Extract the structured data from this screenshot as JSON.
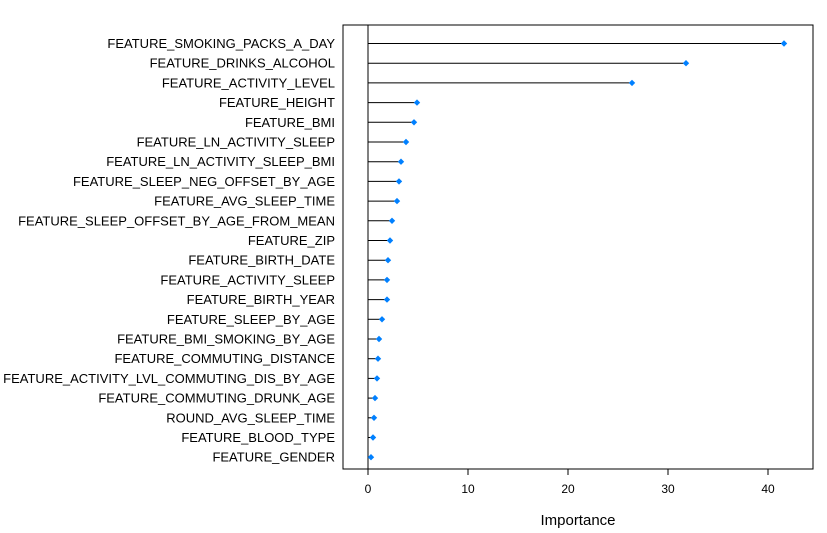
{
  "chart_data": {
    "type": "lollipop",
    "orientation": "horizontal",
    "xlabel": "Importance",
    "ylabel": "",
    "title": "",
    "xlim": [
      -2.5,
      44.5
    ],
    "xticks": [
      0,
      10,
      20,
      30,
      40
    ],
    "grid": false,
    "legend": "none",
    "colors": {
      "marker": "#0080ff",
      "stem": "#000000",
      "frame": "#000000"
    },
    "categories": [
      "FEATURE_SMOKING_PACKS_A_DAY",
      "FEATURE_DRINKS_ALCOHOL",
      "FEATURE_ACTIVITY_LEVEL",
      "FEATURE_HEIGHT",
      "FEATURE_BMI",
      "FEATURE_LN_ACTIVITY_SLEEP",
      "FEATURE_LN_ACTIVITY_SLEEP_BMI",
      "FEATURE_SLEEP_NEG_OFFSET_BY_AGE",
      "FEATURE_AVG_SLEEP_TIME",
      "FEATURE_SLEEP_OFFSET_BY_AGE_FROM_MEAN",
      "FEATURE_ZIP",
      "FEATURE_BIRTH_DATE",
      "FEATURE_ACTIVITY_SLEEP",
      "FEATURE_BIRTH_YEAR",
      "FEATURE_SLEEP_BY_AGE",
      "FEATURE_BMI_SMOKING_BY_AGE",
      "FEATURE_COMMUTING_DISTANCE",
      "FEATURE_ACTIVITY_LVL_COMMUTING_DIS_BY_AGE",
      "FEATURE_COMMUTING_DRUNK_AGE",
      "ROUND_AVG_SLEEP_TIME",
      "FEATURE_BLOOD_TYPE",
      "FEATURE_GENDER"
    ],
    "values": [
      41.6,
      31.8,
      26.4,
      4.9,
      4.6,
      3.8,
      3.3,
      3.1,
      2.9,
      2.4,
      2.2,
      2.0,
      1.9,
      1.9,
      1.4,
      1.1,
      1.0,
      0.9,
      0.7,
      0.6,
      0.5,
      0.3
    ]
  }
}
